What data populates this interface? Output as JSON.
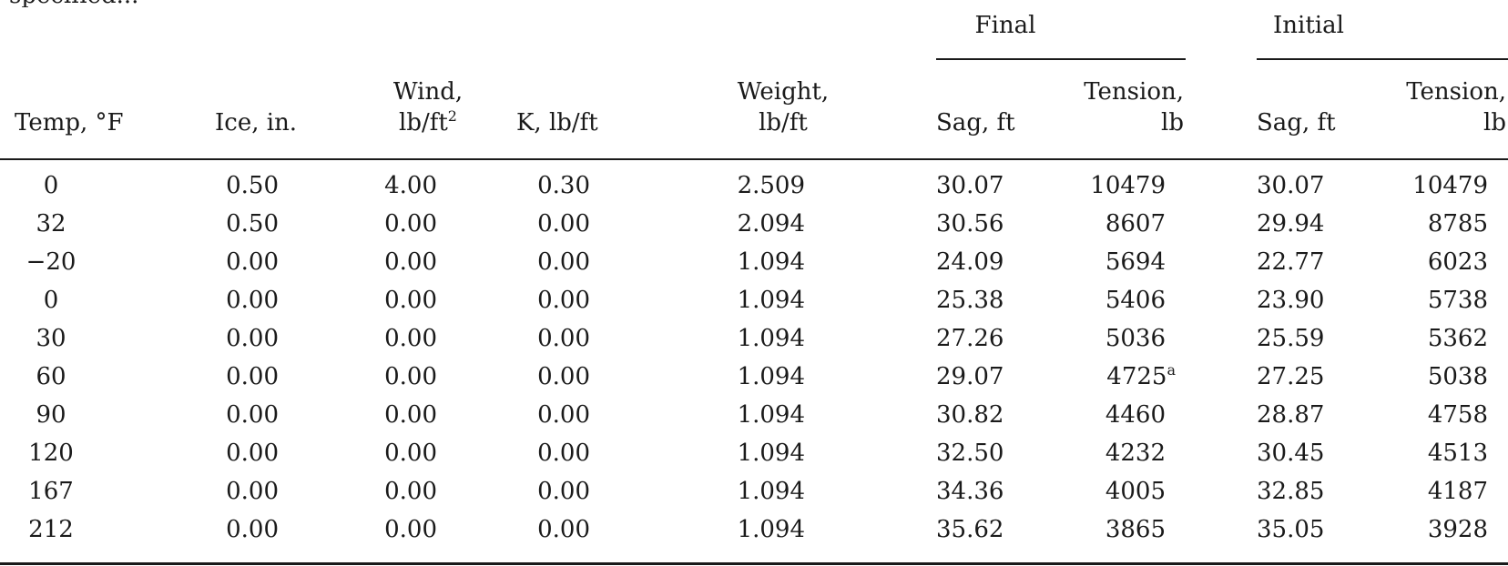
{
  "clipped_text": "specified...",
  "header": {
    "groups": {
      "final": "Final",
      "initial": "Initial"
    },
    "columns": {
      "temp": "Temp, °F",
      "ice": "Ice, in.",
      "wind_line1": "Wind,",
      "wind_line2_base": "lb/ft",
      "wind_line2_sup": "2",
      "k": "K, lb/ft",
      "weight_line1": "Weight,",
      "weight_line2": "lb/ft",
      "final_sag": "Sag, ft",
      "final_tension_line1": "Tension,",
      "final_tension_line2": "lb",
      "initial_sag": "Sag, ft",
      "initial_tension_line1": "Tension,",
      "initial_tension_line2": "lb"
    }
  },
  "rows": [
    {
      "temp": "0",
      "ice": "0.50",
      "wind": "4.00",
      "k": "0.30",
      "weight": "2.509",
      "final_sag": "30.07",
      "final_tension": "10479",
      "final_tension_note": "",
      "initial_sag": "30.07",
      "initial_tension": "10479"
    },
    {
      "temp": "32",
      "ice": "0.50",
      "wind": "0.00",
      "k": "0.00",
      "weight": "2.094",
      "final_sag": "30.56",
      "final_tension": "8607",
      "final_tension_note": "",
      "initial_sag": "29.94",
      "initial_tension": "8785"
    },
    {
      "temp": "−20",
      "ice": "0.00",
      "wind": "0.00",
      "k": "0.00",
      "weight": "1.094",
      "final_sag": "24.09",
      "final_tension": "5694",
      "final_tension_note": "",
      "initial_sag": "22.77",
      "initial_tension": "6023"
    },
    {
      "temp": "0",
      "ice": "0.00",
      "wind": "0.00",
      "k": "0.00",
      "weight": "1.094",
      "final_sag": "25.38",
      "final_tension": "5406",
      "final_tension_note": "",
      "initial_sag": "23.90",
      "initial_tension": "5738"
    },
    {
      "temp": "30",
      "ice": "0.00",
      "wind": "0.00",
      "k": "0.00",
      "weight": "1.094",
      "final_sag": "27.26",
      "final_tension": "5036",
      "final_tension_note": "",
      "initial_sag": "25.59",
      "initial_tension": "5362"
    },
    {
      "temp": "60",
      "ice": "0.00",
      "wind": "0.00",
      "k": "0.00",
      "weight": "1.094",
      "final_sag": "29.07",
      "final_tension": "4725",
      "final_tension_note": "a",
      "initial_sag": "27.25",
      "initial_tension": "5038"
    },
    {
      "temp": "90",
      "ice": "0.00",
      "wind": "0.00",
      "k": "0.00",
      "weight": "1.094",
      "final_sag": "30.82",
      "final_tension": "4460",
      "final_tension_note": "",
      "initial_sag": "28.87",
      "initial_tension": "4758"
    },
    {
      "temp": "120",
      "ice": "0.00",
      "wind": "0.00",
      "k": "0.00",
      "weight": "1.094",
      "final_sag": "32.50",
      "final_tension": "4232",
      "final_tension_note": "",
      "initial_sag": "30.45",
      "initial_tension": "4513"
    },
    {
      "temp": "167",
      "ice": "0.00",
      "wind": "0.00",
      "k": "0.00",
      "weight": "1.094",
      "final_sag": "34.36",
      "final_tension": "4005",
      "final_tension_note": "",
      "initial_sag": "32.85",
      "initial_tension": "4187"
    },
    {
      "temp": "212",
      "ice": "0.00",
      "wind": "0.00",
      "k": "0.00",
      "weight": "1.094",
      "final_sag": "35.62",
      "final_tension": "3865",
      "final_tension_note": "",
      "initial_sag": "35.05",
      "initial_tension": "3928"
    }
  ]
}
